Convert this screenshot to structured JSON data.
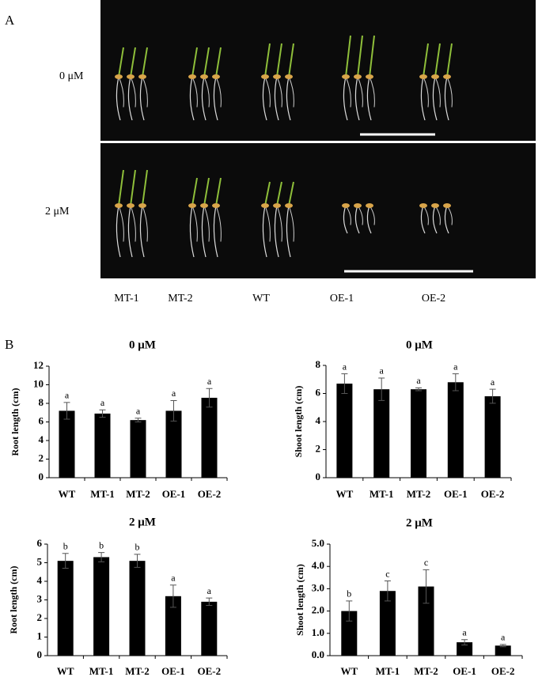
{
  "panel_a": {
    "label": "A",
    "rows": [
      "0 μM",
      "2 μM"
    ],
    "genotypes": [
      "MT-1",
      "MT-2",
      "WT",
      "OE-1",
      "OE-2"
    ]
  },
  "panel_b": {
    "label": "B"
  },
  "chart_data": [
    {
      "type": "bar",
      "title": "0 μM",
      "y_label": "Root length (cm)",
      "categories": [
        "WT",
        "MT-1",
        "MT-2",
        "OE-1",
        "OE-2"
      ],
      "values": [
        7.2,
        6.9,
        6.2,
        7.2,
        8.6
      ],
      "errors": [
        0.9,
        0.4,
        0.2,
        1.1,
        1.0
      ],
      "annotations": [
        "a",
        "a",
        "a",
        "a",
        "a"
      ],
      "color": "#000000",
      "ylim": [
        0,
        12
      ],
      "yticks": [
        0,
        2,
        4,
        6,
        8,
        10,
        12
      ]
    },
    {
      "type": "bar",
      "title": "0 μM",
      "y_label": "Shoot length (cm)",
      "categories": [
        "WT",
        "MT-1",
        "MT-2",
        "OE-1",
        "OE-2"
      ],
      "values": [
        6.7,
        6.3,
        6.3,
        6.8,
        5.8
      ],
      "errors": [
        0.7,
        0.8,
        0.1,
        0.6,
        0.5
      ],
      "annotations": [
        "a",
        "a",
        "a",
        "a",
        "a"
      ],
      "color": "#000000",
      "ylim": [
        0,
        8
      ],
      "yticks": [
        0,
        2,
        4,
        6,
        8
      ]
    },
    {
      "type": "bar",
      "title": "2 μM",
      "y_label": "Root length (cm)",
      "categories": [
        "WT",
        "MT-1",
        "MT-2",
        "OE-1",
        "OE-2"
      ],
      "values": [
        5.1,
        5.3,
        5.1,
        3.2,
        2.9
      ],
      "errors": [
        0.4,
        0.25,
        0.35,
        0.6,
        0.2
      ],
      "annotations": [
        "b",
        "b",
        "b",
        "a",
        "a"
      ],
      "color": "#000000",
      "ylim": [
        0,
        6
      ],
      "yticks": [
        0,
        1,
        2,
        3,
        4,
        5,
        6
      ]
    },
    {
      "type": "bar",
      "title": "2 μM",
      "y_label": "Shoot length (cm)",
      "categories": [
        "WT",
        "MT-1",
        "MT-2",
        "OE-1",
        "OE-2"
      ],
      "values": [
        2.0,
        2.9,
        3.1,
        0.6,
        0.45
      ],
      "errors": [
        0.45,
        0.45,
        0.75,
        0.12,
        0.05
      ],
      "annotations": [
        "b",
        "c",
        "c",
        "a",
        "a"
      ],
      "color": "#000000",
      "ylim": [
        0,
        5
      ],
      "yticks": [
        {
          "value": 0,
          "label": "0.0"
        },
        {
          "value": 1,
          "label": "1.0"
        },
        {
          "value": 2,
          "label": "2.0"
        },
        {
          "value": 3,
          "label": "3.0"
        },
        {
          "value": 4,
          "label": "4.0"
        },
        {
          "value": 5,
          "label": "5.0"
        }
      ]
    }
  ]
}
